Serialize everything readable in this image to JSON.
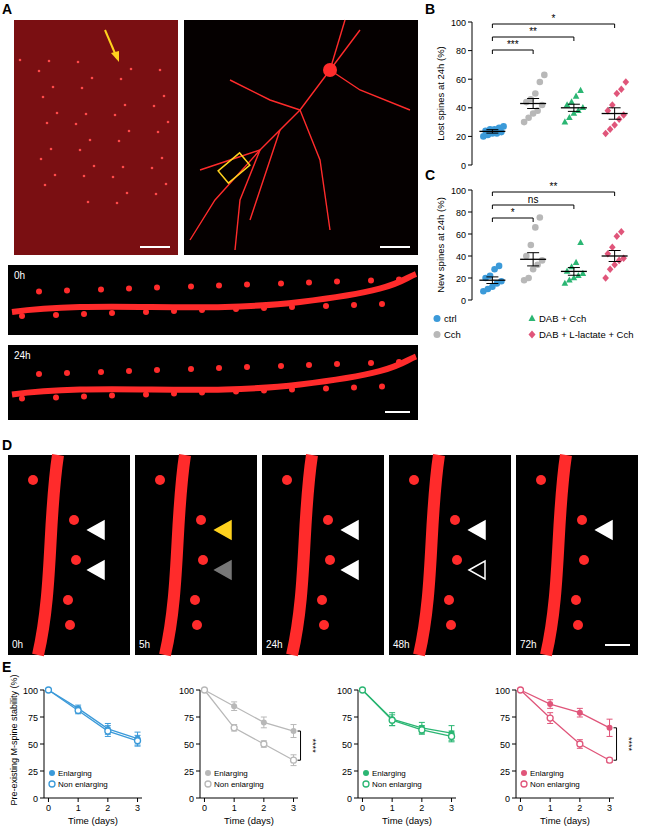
{
  "panels": {
    "labels": [
      "A",
      "B",
      "C",
      "D",
      "E"
    ],
    "A_times": [
      "0h",
      "24h"
    ],
    "D_times": [
      "0h",
      "5h",
      "24h",
      "48h",
      "72h"
    ]
  },
  "chart_data": [
    {
      "type": "scatter",
      "y_label": "Lost spines at 24h (%)",
      "ylim": [
        0,
        100
      ],
      "yticks": [
        0,
        20,
        40,
        60,
        80,
        100
      ],
      "series": [
        {
          "color": "#3b9ad9",
          "marker": "circle",
          "values": [
            20,
            21,
            22,
            22,
            23,
            24,
            25,
            25,
            26,
            27
          ],
          "mean": 23.5,
          "sem": 1.2
        },
        {
          "color": "#b8b8b8",
          "marker": "circle",
          "values": [
            30,
            33,
            36,
            38,
            42,
            44,
            46,
            50,
            58,
            63
          ],
          "mean": 43,
          "sem": 3.5,
          "significance": "***"
        },
        {
          "color": "#2bb673",
          "marker": "triangle",
          "values": [
            30,
            33,
            36,
            38,
            40,
            42,
            44,
            48,
            52
          ],
          "mean": 40,
          "sem": 2.5,
          "significance": "**"
        },
        {
          "color": "#e0557a",
          "marker": "diamond",
          "values": [
            22,
            25,
            28,
            32,
            35,
            38,
            42,
            50,
            53,
            58
          ],
          "mean": 36,
          "sem": 4,
          "significance": "*"
        }
      ]
    },
    {
      "type": "scatter",
      "y_label": "New spines at 24h (%)",
      "ylim": [
        0,
        100
      ],
      "yticks": [
        0,
        20,
        40,
        60,
        80,
        100
      ],
      "legend": "bottom",
      "series": [
        {
          "name": "ctrl",
          "color": "#3b9ad9",
          "marker": "circle",
          "values": [
            8,
            10,
            12,
            15,
            17,
            20,
            22,
            28,
            31
          ],
          "mean": 18,
          "sem": 3
        },
        {
          "name": "Cch",
          "color": "#b8b8b8",
          "marker": "circle",
          "values": [
            18,
            20,
            28,
            32,
            36,
            40,
            50,
            66,
            75
          ],
          "mean": 37,
          "sem": 6,
          "significance": "*"
        },
        {
          "name": "DAB + Cch",
          "color": "#2bb673",
          "marker": "triangle",
          "values": [
            15,
            18,
            20,
            22,
            24,
            26,
            30,
            34,
            52
          ],
          "mean": 26,
          "sem": 3.5,
          "significance": "ns"
        },
        {
          "name": "DAB + L-lactate + Cch",
          "color": "#e0557a",
          "marker": "diamond",
          "values": [
            20,
            28,
            32,
            36,
            38,
            42,
            48,
            58,
            62
          ],
          "mean": 40,
          "sem": 5,
          "significance": "**"
        }
      ]
    },
    {
      "type": "line",
      "x_label": "Time (days)",
      "y_label": "Pre-existing M-spine stability (%)",
      "x": [
        0,
        1,
        2,
        3
      ],
      "xlim": [
        -0.15,
        3.15
      ],
      "xticks": [
        0,
        1,
        2,
        3
      ],
      "ylim": [
        0,
        100
      ],
      "yticks": [
        0,
        25,
        50,
        75,
        100
      ],
      "legend": "lower left",
      "series": [
        {
          "name": "Enlarging",
          "color": "#3b9ad9",
          "marker": "circle",
          "values": [
            100,
            83,
            64,
            55
          ],
          "errors": [
            0,
            3,
            5,
            6
          ]
        },
        {
          "name": "Non enlarging",
          "color": "#3b9ad9",
          "marker": "open-circle",
          "values": [
            100,
            81,
            62,
            53
          ],
          "errors": [
            0,
            3,
            5,
            5
          ]
        }
      ]
    },
    {
      "type": "line",
      "x_label": "Time (days)",
      "x": [
        0,
        1,
        2,
        3
      ],
      "xlim": [
        -0.15,
        3.15
      ],
      "xticks": [
        0,
        1,
        2,
        3
      ],
      "ylim": [
        0,
        100
      ],
      "yticks": [
        0,
        25,
        50,
        75,
        100
      ],
      "legend": "lower left",
      "significance": "****",
      "series": [
        {
          "name": "Enlarging",
          "color": "#b8b8b8",
          "marker": "circle",
          "values": [
            100,
            85,
            70,
            62
          ],
          "errors": [
            0,
            4,
            5,
            6
          ]
        },
        {
          "name": "Non enlarging",
          "color": "#b8b8b8",
          "marker": "open-circle",
          "values": [
            100,
            65,
            50,
            35
          ],
          "errors": [
            0,
            3,
            3,
            5
          ]
        }
      ]
    },
    {
      "type": "line",
      "x_label": "Time (days)",
      "x": [
        0,
        1,
        2,
        3
      ],
      "xlim": [
        -0.15,
        3.15
      ],
      "xticks": [
        0,
        1,
        2,
        3
      ],
      "ylim": [
        0,
        100
      ],
      "yticks": [
        0,
        25,
        50,
        75,
        100
      ],
      "legend": "lower left",
      "series": [
        {
          "name": "Enlarging",
          "color": "#2bb673",
          "marker": "circle",
          "values": [
            100,
            73,
            65,
            60
          ],
          "errors": [
            0,
            6,
            5,
            7
          ]
        },
        {
          "name": "Non enlarging",
          "color": "#2bb673",
          "marker": "open-circle",
          "values": [
            100,
            72,
            63,
            57
          ],
          "errors": [
            0,
            5,
            4,
            5
          ]
        }
      ]
    },
    {
      "type": "line",
      "x_label": "Time (days)",
      "x": [
        0,
        1,
        2,
        3
      ],
      "xlim": [
        -0.15,
        3.15
      ],
      "xticks": [
        0,
        1,
        2,
        3
      ],
      "ylim": [
        0,
        100
      ],
      "yticks": [
        0,
        25,
        50,
        75,
        100
      ],
      "legend": "lower left",
      "significance": "****",
      "series": [
        {
          "name": "Enlarging",
          "color": "#e0557a",
          "marker": "circle",
          "values": [
            100,
            87,
            79,
            65
          ],
          "errors": [
            0,
            4,
            4,
            8
          ]
        },
        {
          "name": "Non enlarging",
          "color": "#e0557a",
          "marker": "open-circle",
          "values": [
            100,
            74,
            50,
            35
          ],
          "errors": [
            0,
            5,
            4,
            2
          ]
        }
      ]
    }
  ]
}
